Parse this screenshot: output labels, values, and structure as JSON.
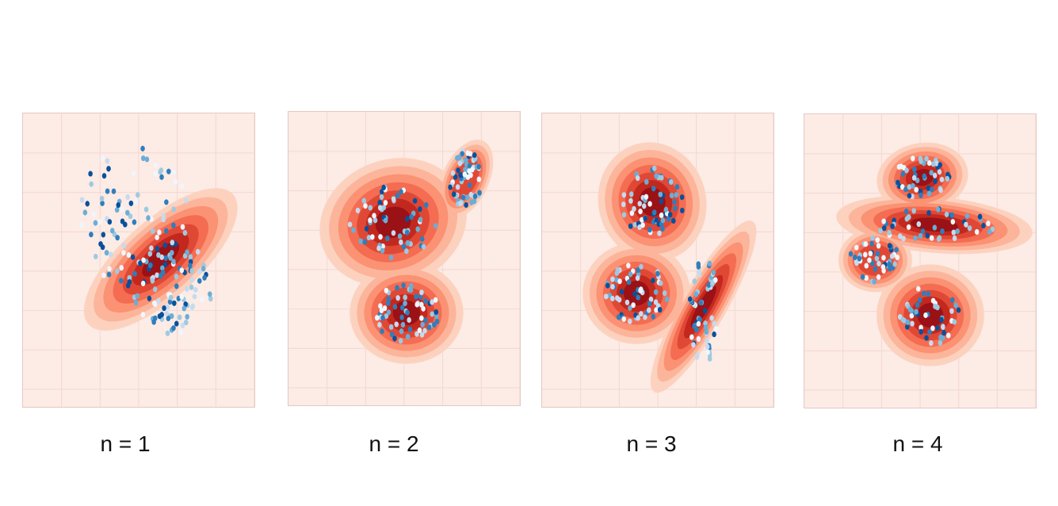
{
  "panels": [
    {
      "caption": "n = 1"
    },
    {
      "caption": "n = 2"
    },
    {
      "caption": "n = 3"
    },
    {
      "caption": "n = 4"
    }
  ],
  "colors": {
    "background": "#fdebe5",
    "contour_levels": [
      "#fcd2bf",
      "#fcb59b",
      "#fb9273",
      "#f46c52",
      "#e04836",
      "#c3281e",
      "#9a1116"
    ],
    "points": [
      "#f0f6fd",
      "#c6dbef",
      "#9ecae1",
      "#6baed6",
      "#2f7ebc",
      "#08519c"
    ]
  }
}
